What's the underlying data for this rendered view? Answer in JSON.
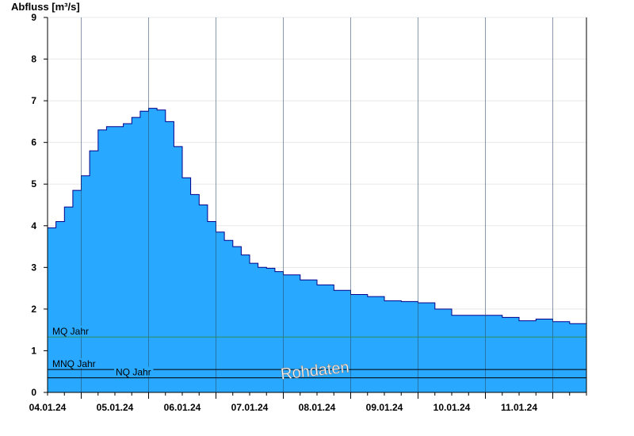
{
  "chart_data": {
    "type": "area",
    "ylabel": "Abfluss [m³/s]",
    "ylim": [
      0,
      9
    ],
    "yticks": [
      0,
      1,
      2,
      3,
      4,
      5,
      6,
      7,
      8,
      9
    ],
    "xlim": [
      "2024-01-03T12:00",
      "2024-01-11T12:00"
    ],
    "day_boundaries": [
      "2024-01-04",
      "2024-01-05",
      "2024-01-06",
      "2024-01-07",
      "2024-01-08",
      "2024-01-09",
      "2024-01-10",
      "2024-01-11"
    ],
    "xtick_labels": [
      "04.01.24",
      "05.01.24",
      "06.01.24",
      "07.01.24",
      "08.01.24",
      "09.01.24",
      "10.01.24",
      "11.01.24"
    ],
    "grid": true,
    "colors": {
      "fill": "#29a8ff",
      "line": "#00008b",
      "mq_line": "#2e8b57",
      "ref_line": "#000000",
      "gridline": "#e8e8e8"
    },
    "reference_lines": [
      {
        "name": "MQ Jahr",
        "value": 1.33
      },
      {
        "name": "MNQ Jahr",
        "value": 0.55
      },
      {
        "name": "NQ Jahr",
        "value": 0.35
      }
    ],
    "watermark": "Rohdaten",
    "series": [
      {
        "x": [
          "2024-01-03T12:00",
          "2024-01-03T15:00",
          "2024-01-03T18:00",
          "2024-01-03T21:00",
          "2024-01-04T00:00",
          "2024-01-04T03:00",
          "2024-01-04T06:00",
          "2024-01-04T09:00",
          "2024-01-04T12:00",
          "2024-01-04T15:00",
          "2024-01-04T18:00",
          "2024-01-04T21:00",
          "2024-01-05T00:00",
          "2024-01-05T03:00",
          "2024-01-05T06:00",
          "2024-01-05T09:00",
          "2024-01-05T12:00",
          "2024-01-05T15:00",
          "2024-01-05T18:00",
          "2024-01-05T21:00",
          "2024-01-06T00:00",
          "2024-01-06T03:00",
          "2024-01-06T06:00",
          "2024-01-06T09:00",
          "2024-01-06T12:00",
          "2024-01-06T15:00",
          "2024-01-06T18:00",
          "2024-01-06T21:00",
          "2024-01-07T00:00",
          "2024-01-07T06:00",
          "2024-01-07T12:00",
          "2024-01-07T18:00",
          "2024-01-08T00:00",
          "2024-01-08T06:00",
          "2024-01-08T12:00",
          "2024-01-08T18:00",
          "2024-01-09T00:00",
          "2024-01-09T06:00",
          "2024-01-09T12:00",
          "2024-01-09T18:00",
          "2024-01-10T00:00",
          "2024-01-10T06:00",
          "2024-01-10T12:00",
          "2024-01-10T18:00",
          "2024-01-11T00:00",
          "2024-01-11T06:00",
          "2024-01-11T12:00"
        ],
        "y": [
          3.95,
          4.1,
          4.45,
          4.85,
          5.2,
          5.8,
          6.3,
          6.38,
          6.38,
          6.45,
          6.6,
          6.75,
          6.82,
          6.78,
          6.5,
          5.9,
          5.15,
          4.75,
          4.5,
          4.1,
          3.85,
          3.65,
          3.5,
          3.3,
          3.1,
          3.0,
          2.98,
          2.9,
          2.82,
          2.7,
          2.58,
          2.45,
          2.35,
          2.3,
          2.2,
          2.18,
          2.15,
          2.0,
          1.85,
          1.85,
          1.85,
          1.8,
          1.72,
          1.76,
          1.7,
          1.65,
          1.65
        ]
      }
    ]
  }
}
